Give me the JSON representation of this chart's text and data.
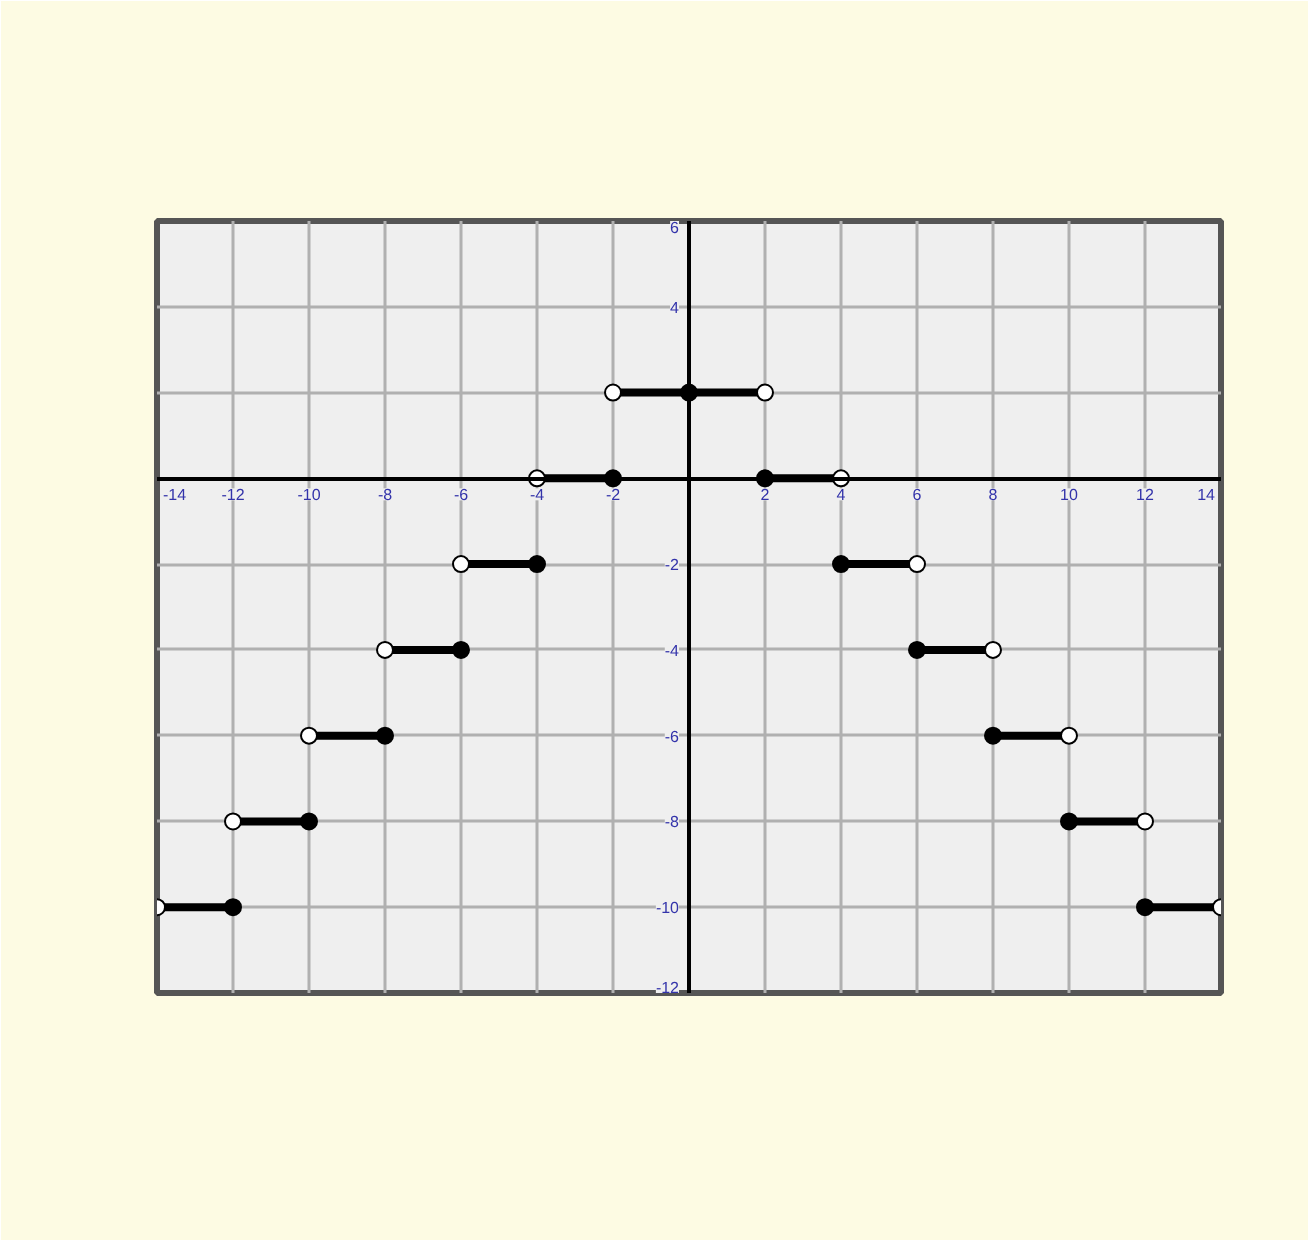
{
  "chart_data": {
    "type": "line",
    "xlim": [
      -14,
      14
    ],
    "ylim": [
      -12,
      6
    ],
    "xticks": [
      -14,
      -12,
      -10,
      -8,
      -6,
      -4,
      -2,
      2,
      4,
      6,
      8,
      10,
      12,
      14
    ],
    "yticks": [
      -12,
      -10,
      -8,
      -6,
      -4,
      -2,
      {
        "value": 2,
        "label": null
      },
      4,
      6
    ],
    "grid": true,
    "series": [
      {
        "color": "#000000",
        "marker": "none",
        "x": [
          -14,
          -12
        ],
        "values": [
          -10,
          -10
        ]
      },
      {
        "color": "#000000",
        "marker": "none",
        "x": [
          -12,
          -10
        ],
        "values": [
          -8,
          -8
        ]
      },
      {
        "color": "#000000",
        "marker": "none",
        "x": [
          -10,
          -8
        ],
        "values": [
          -6,
          -6
        ]
      },
      {
        "color": "#000000",
        "marker": "none",
        "x": [
          -8,
          -6
        ],
        "values": [
          -4,
          -4
        ]
      },
      {
        "color": "#000000",
        "marker": "none",
        "x": [
          -6,
          -4
        ],
        "values": [
          -2,
          -2
        ]
      },
      {
        "color": "#000000",
        "marker": "none",
        "x": [
          -4,
          -2
        ],
        "values": [
          0,
          0
        ]
      },
      {
        "color": "#000000",
        "marker": "none",
        "x": [
          -2,
          2
        ],
        "values": [
          2,
          2
        ]
      },
      {
        "color": "#000000",
        "marker": "none",
        "x": [
          2,
          4
        ],
        "values": [
          0,
          0
        ]
      },
      {
        "color": "#000000",
        "marker": "none",
        "x": [
          4,
          6
        ],
        "values": [
          -2,
          -2
        ]
      },
      {
        "color": "#000000",
        "marker": "none",
        "x": [
          6,
          8
        ],
        "values": [
          -4,
          -4
        ]
      },
      {
        "color": "#000000",
        "marker": "none",
        "x": [
          8,
          10
        ],
        "values": [
          -6,
          -6
        ]
      },
      {
        "color": "#000000",
        "marker": "none",
        "x": [
          10,
          12
        ],
        "values": [
          -8,
          -8
        ]
      },
      {
        "color": "#000000",
        "marker": "none",
        "x": [
          12,
          14
        ],
        "values": [
          -10,
          -10
        ]
      },
      {
        "type": "scatter",
        "color": "#000000",
        "marker": "circle",
        "x": [
          -12,
          -10,
          -8,
          -6,
          -4,
          -2,
          0,
          2,
          4,
          6,
          8,
          10,
          12
        ],
        "values": [
          -10,
          -8,
          -6,
          -4,
          -2,
          0,
          2,
          0,
          -2,
          -4,
          -6,
          -8,
          -10
        ]
      },
      {
        "type": "scatter",
        "color": "#ffffff",
        "marker": "circle",
        "x": [
          -14,
          -12,
          -10,
          -8,
          -6,
          -4,
          -2,
          2,
          4,
          6,
          8,
          10,
          12,
          14
        ],
        "values": [
          -10,
          -8,
          -6,
          -4,
          -2,
          0,
          2,
          2,
          0,
          -2,
          -4,
          -6,
          -8,
          -10
        ]
      }
    ]
  }
}
